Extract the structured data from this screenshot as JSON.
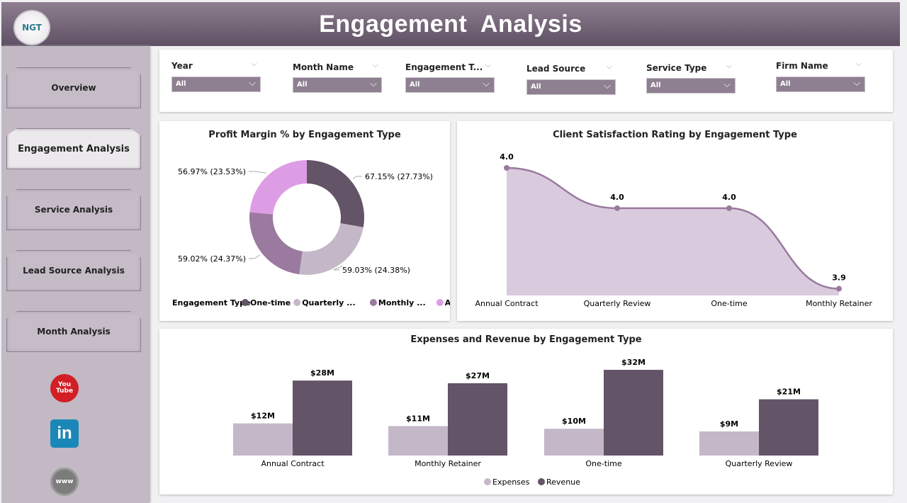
{
  "header": {
    "title": "Engagement  Analysis",
    "logo_text": "NGT"
  },
  "sidebar": {
    "items": [
      {
        "label": "Overview",
        "active": false
      },
      {
        "label": "Engagement Analysis",
        "active": true
      },
      {
        "label": "Service Analysis",
        "active": false
      },
      {
        "label": "Lead Source Analysis",
        "active": false
      },
      {
        "label": "Month Analysis",
        "active": false
      }
    ],
    "social": [
      {
        "icon": "youtube-icon",
        "text": "You Tube"
      },
      {
        "icon": "linkedin-icon",
        "text": "in"
      },
      {
        "icon": "website-globe-icon",
        "text": "www"
      }
    ]
  },
  "filters": [
    {
      "label": "Year",
      "value": "All"
    },
    {
      "label": "Month Name",
      "value": "All"
    },
    {
      "label": "Engagement T...",
      "value": "All"
    },
    {
      "label": "Lead Source",
      "value": "All"
    },
    {
      "label": "Service Type",
      "value": "All"
    },
    {
      "label": "Firm Name",
      "value": "All"
    }
  ],
  "chart_data": [
    {
      "type": "pie",
      "title": "Profit Margin % by Engagement Type",
      "legend_title": "Engagement Type",
      "legend_placement": "bottom",
      "slices": [
        {
          "name": "One-time",
          "legend": "One-time",
          "label": "67.15% (27.73%)",
          "value": 67.15,
          "share": 27.73,
          "color": "#645468"
        },
        {
          "name": "Quarterly Review",
          "legend": "Quarterly ...",
          "label": "59.03% (24.38%)",
          "value": 59.03,
          "share": 24.38,
          "color": "#c4b8c8"
        },
        {
          "name": "Monthly Retainer",
          "legend": "Monthly ...",
          "label": "59.02% (24.37%)",
          "value": 59.02,
          "share": 24.37,
          "color": "#9a7a9e"
        },
        {
          "name": "Annual Contract",
          "legend": "Annual C...",
          "label": "56.97% (23.53%)",
          "value": 56.97,
          "share": 23.53,
          "color": "#dd9de4"
        }
      ]
    },
    {
      "type": "area",
      "title": "Client Satisfaction Rating by Engagement Type",
      "color": "#9a7a9e",
      "fill": "#d9cbdd",
      "categories": [
        "Annual Contract",
        "Quarterly Review",
        "One-time",
        "Monthly Retainer"
      ],
      "values": [
        4.04,
        3.98,
        3.98,
        3.86
      ],
      "labels": [
        "4.0",
        "4.0",
        "4.0",
        "3.9"
      ]
    },
    {
      "type": "bar",
      "title": "Expenses and Revenue by Engagement Type",
      "legend_placement": "bottom",
      "categories": [
        "Annual Contract",
        "Monthly Retainer",
        "One-time",
        "Quarterly Review"
      ],
      "series": [
        {
          "name": "Expenses",
          "color": "#c4b8c8",
          "values": [
            12,
            11,
            10,
            9
          ],
          "labels": [
            "$12M",
            "$11M",
            "$10M",
            "$9M"
          ]
        },
        {
          "name": "Revenue",
          "color": "#645468",
          "values": [
            28,
            27,
            32,
            21
          ],
          "labels": [
            "$28M",
            "$27M",
            "$32M",
            "$21M"
          ]
        }
      ]
    }
  ]
}
